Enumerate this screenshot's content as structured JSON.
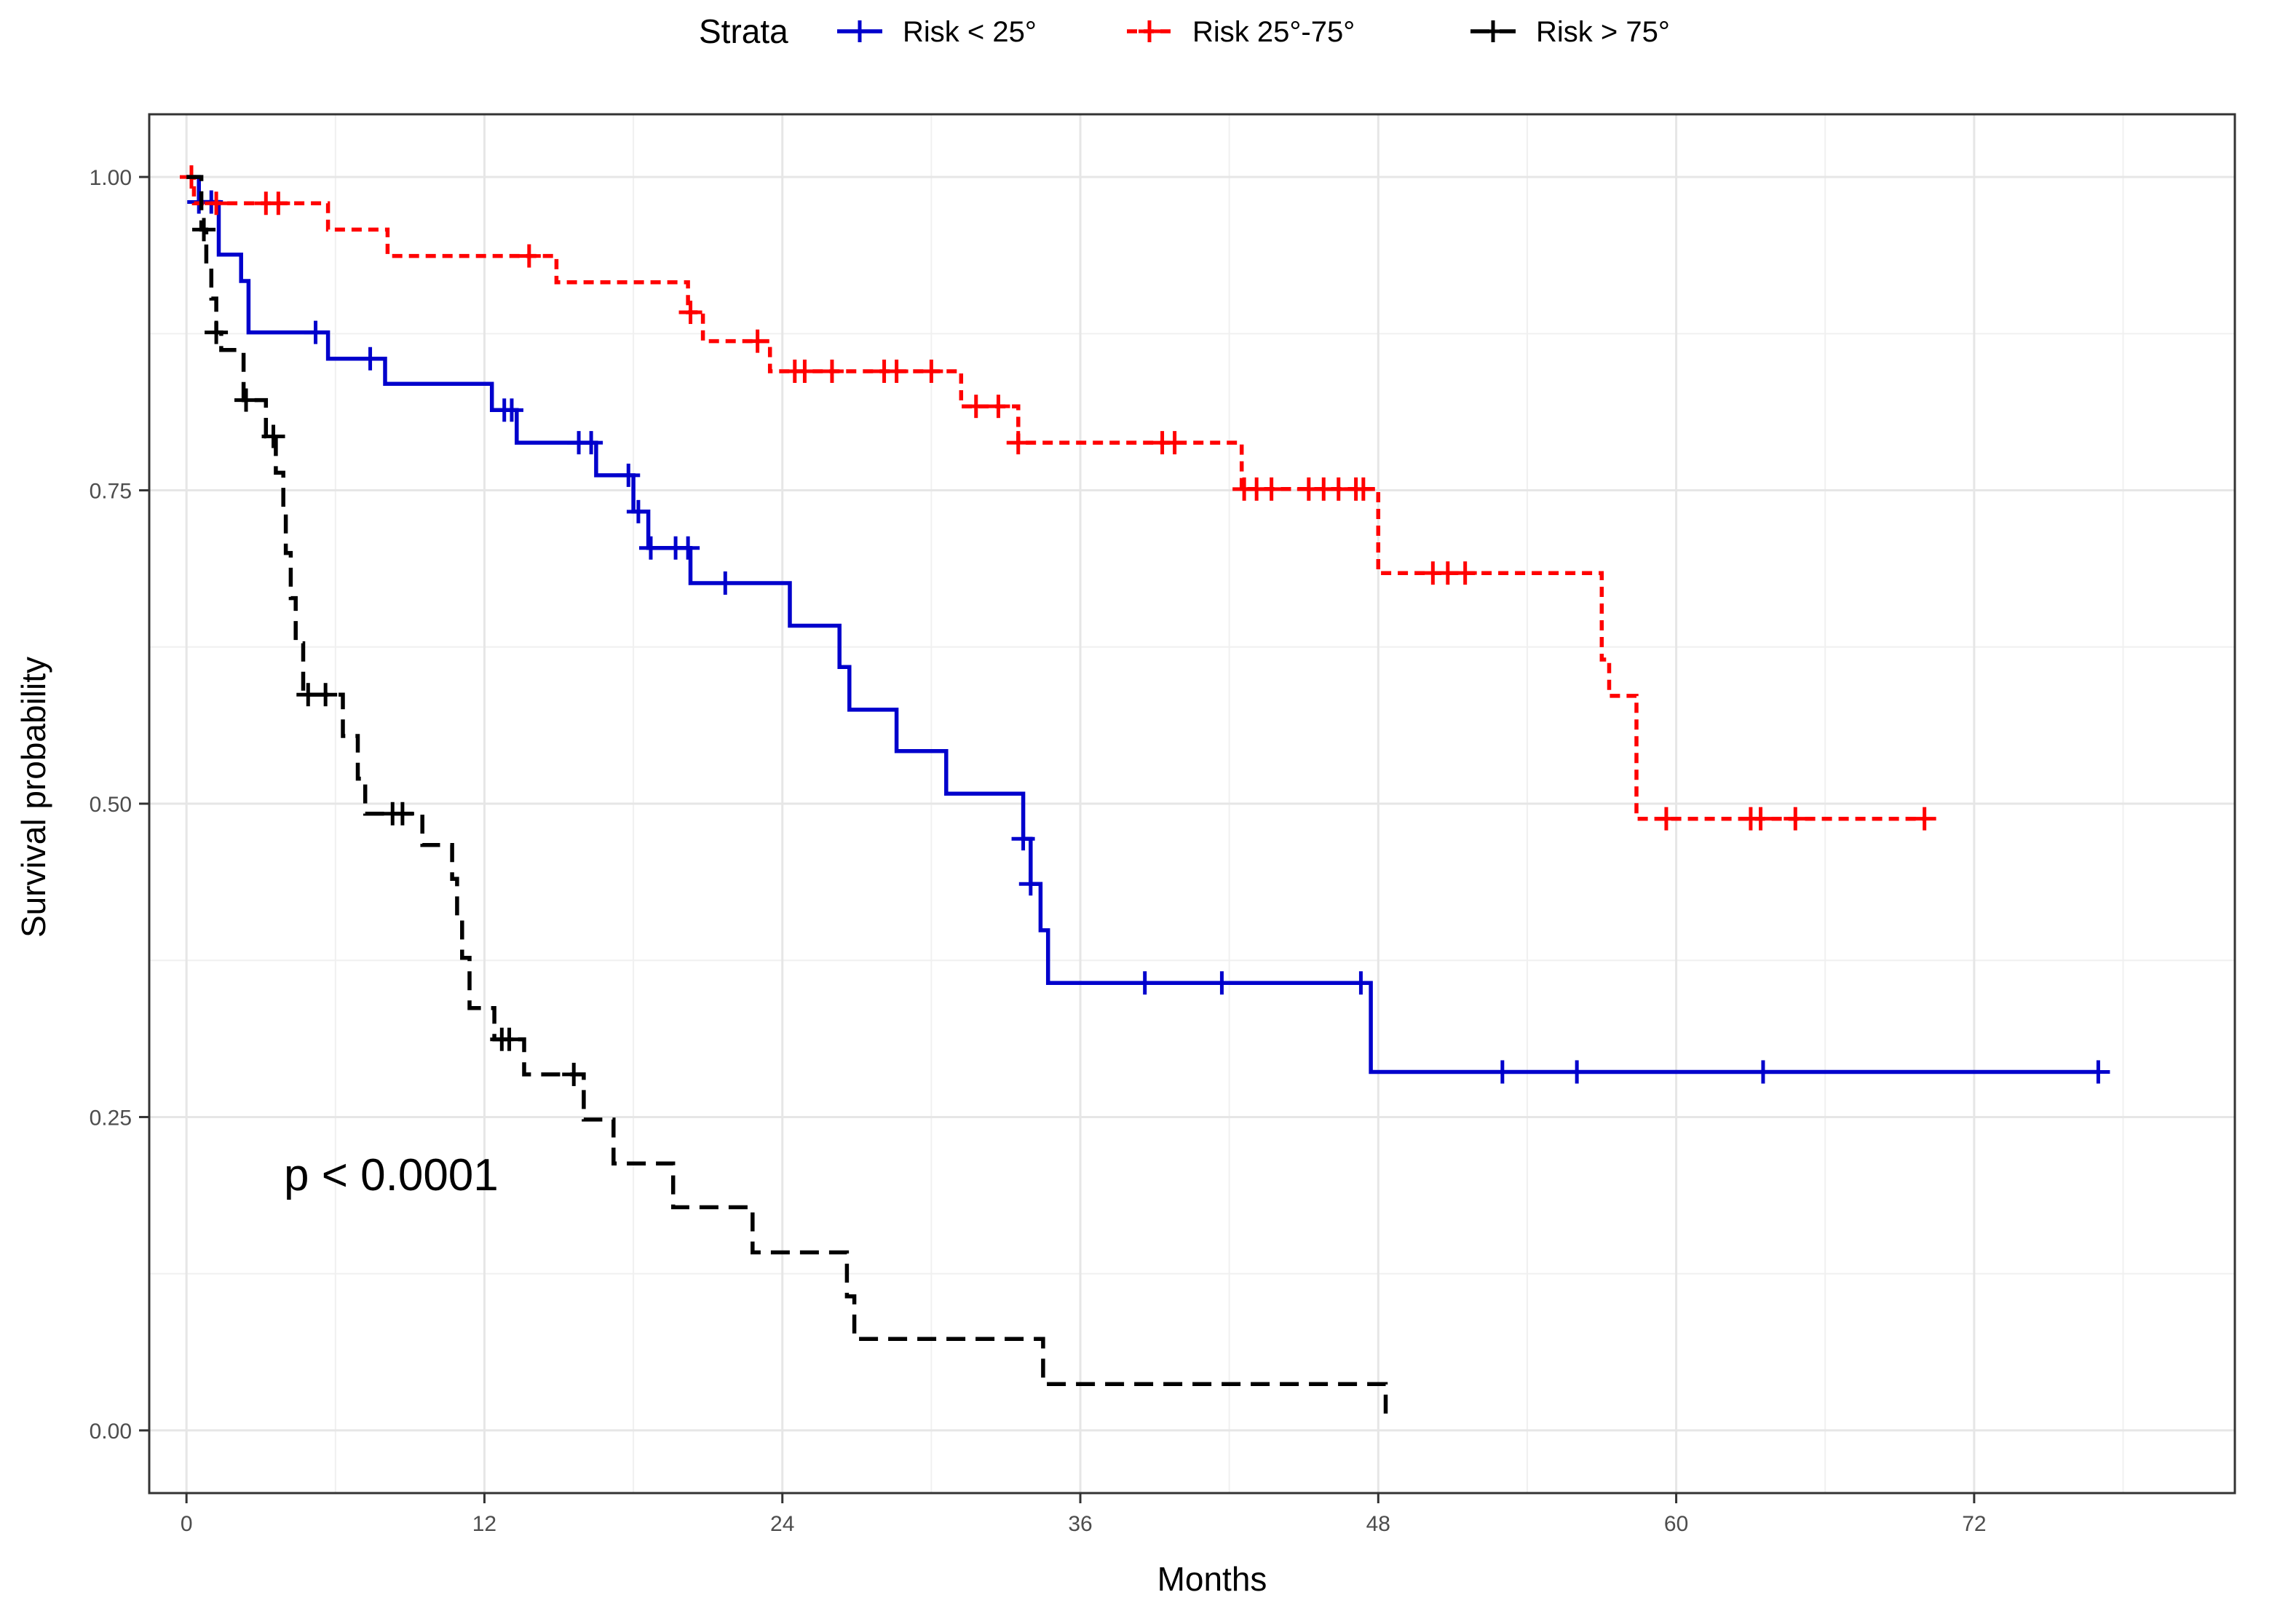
{
  "chart_data": {
    "type": "line",
    "subtype": "kaplan-meier",
    "title": "",
    "xlabel": "Months",
    "ylabel": "Survival probability",
    "xlim": [
      -1.5,
      82.5
    ],
    "ylim": [
      -0.05,
      1.05
    ],
    "xticks": [
      0,
      12,
      24,
      36,
      48,
      60,
      72
    ],
    "xtick_labels": [
      "0",
      "12",
      "24",
      "36",
      "48",
      "60",
      "72"
    ],
    "yticks": [
      0,
      0.25,
      0.5,
      0.75,
      1
    ],
    "ytick_labels": [
      "0.00",
      "0.25",
      "0.50",
      "0.75",
      "1.00"
    ],
    "grid": true,
    "legend_position": "top",
    "legend_title": "Strata",
    "annotation": "p < 0.0001",
    "series": [
      {
        "name": "Risk < 25°",
        "color": "#0000cc",
        "line_style": "solid",
        "steps": [
          [
            0,
            1
          ],
          [
            0.5,
            0.98
          ],
          [
            1.3,
            0.938
          ],
          [
            2.2,
            0.917
          ],
          [
            2.5,
            0.876
          ],
          [
            5.7,
            0.855
          ],
          [
            8.0,
            0.835
          ],
          [
            12.3,
            0.814
          ],
          [
            13.3,
            0.788
          ],
          [
            16.5,
            0.762
          ],
          [
            18.0,
            0.733
          ],
          [
            18.6,
            0.704
          ],
          [
            20.3,
            0.676
          ],
          [
            24.3,
            0.642
          ],
          [
            26.3,
            0.609
          ],
          [
            26.7,
            0.575
          ],
          [
            28.6,
            0.542
          ],
          [
            30.6,
            0.508
          ],
          [
            33.7,
            0.472
          ],
          [
            34.0,
            0.436
          ],
          [
            34.4,
            0.399
          ],
          [
            34.7,
            0.357
          ],
          [
            47.6,
            0.357
          ],
          [
            47.7,
            0.286
          ],
          [
            77.0,
            0.286
          ]
        ],
        "censor_times": [
          0.5,
          1.0,
          5.2,
          7.4,
          12.8,
          13.1,
          15.8,
          16.3,
          17.8,
          18.2,
          18.7,
          19.7,
          20.2,
          21.7,
          33.7,
          34.0,
          38.6,
          41.7,
          47.3,
          53.0,
          56.0,
          63.5,
          77.0
        ]
      },
      {
        "name": "Risk 25°-75°",
        "color": "#ff0000",
        "line_style": "dotted",
        "steps": [
          [
            0,
            1
          ],
          [
            0.3,
            0.979
          ],
          [
            5.7,
            0.958
          ],
          [
            8.1,
            0.937
          ],
          [
            14.9,
            0.916
          ],
          [
            20.2,
            0.892
          ],
          [
            20.8,
            0.869
          ],
          [
            23.5,
            0.845
          ],
          [
            31.2,
            0.817
          ],
          [
            33.5,
            0.788
          ],
          [
            42.5,
            0.751
          ],
          [
            48.0,
            0.684
          ],
          [
            57.0,
            0.615
          ],
          [
            57.3,
            0.586
          ],
          [
            58.4,
            0.488
          ],
          [
            70.0,
            0.488
          ]
        ],
        "censor_times": [
          0.2,
          1.2,
          3.2,
          3.7,
          13.8,
          20.3,
          23.0,
          24.5,
          24.9,
          26.0,
          28.1,
          28.6,
          30.0,
          31.8,
          32.7,
          33.5,
          39.3,
          39.8,
          42.6,
          43.1,
          43.7,
          45.2,
          45.8,
          46.4,
          47.1,
          47.4,
          50.2,
          50.8,
          51.5,
          59.6,
          63.0,
          63.4,
          64.8,
          70.0
        ]
      },
      {
        "name": "Risk > 75°",
        "color": "#000000",
        "line_style": "dashed",
        "steps": [
          [
            0,
            1
          ],
          [
            0.6,
            0.958
          ],
          [
            0.8,
            0.931
          ],
          [
            1.0,
            0.903
          ],
          [
            1.2,
            0.876
          ],
          [
            1.4,
            0.862
          ],
          [
            2.3,
            0.822
          ],
          [
            3.2,
            0.793
          ],
          [
            3.6,
            0.764
          ],
          [
            3.9,
            0.736
          ],
          [
            4.0,
            0.7
          ],
          [
            4.2,
            0.664
          ],
          [
            4.4,
            0.628
          ],
          [
            4.7,
            0.587
          ],
          [
            6.3,
            0.554
          ],
          [
            6.9,
            0.52
          ],
          [
            7.2,
            0.492
          ],
          [
            9.5,
            0.467
          ],
          [
            10.7,
            0.44
          ],
          [
            10.9,
            0.408
          ],
          [
            11.1,
            0.377
          ],
          [
            11.4,
            0.337
          ],
          [
            12.4,
            0.312
          ],
          [
            13.6,
            0.284
          ],
          [
            16.0,
            0.248
          ],
          [
            17.2,
            0.213
          ],
          [
            19.6,
            0.178
          ],
          [
            22.8,
            0.142
          ],
          [
            26.6,
            0.107
          ],
          [
            26.9,
            0.073
          ],
          [
            34.5,
            0.037
          ],
          [
            48.2,
            0.037
          ],
          [
            48.3,
            0.008
          ]
        ],
        "censor_times": [
          0.7,
          1.2,
          2.4,
          3.5,
          4.9,
          5.6,
          8.3,
          8.7,
          12.7,
          13.0,
          15.6
        ]
      }
    ]
  }
}
